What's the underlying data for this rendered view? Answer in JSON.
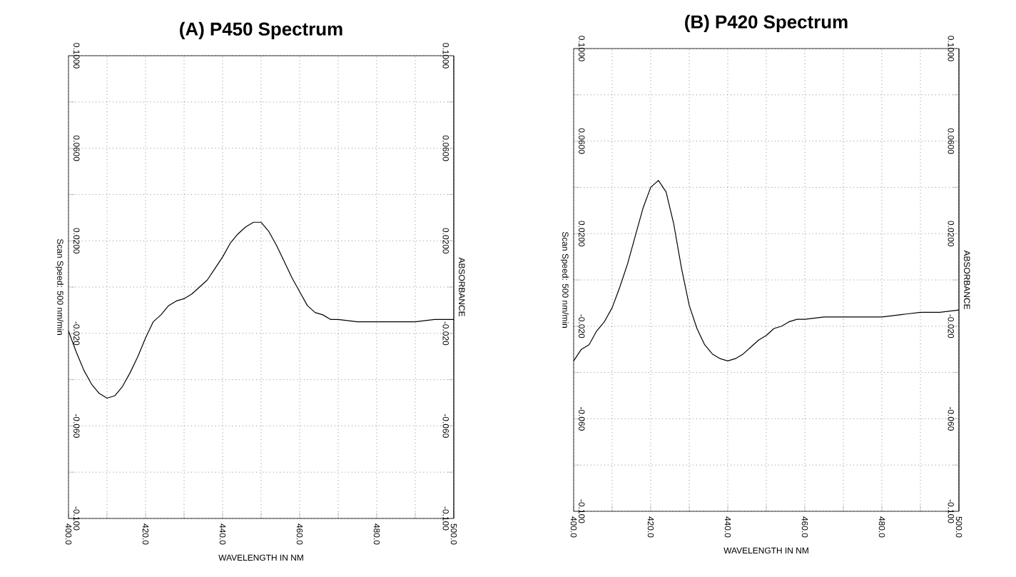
{
  "chart_data": [
    {
      "type": "line",
      "title": "(A) P450 Spectrum",
      "xlabel": "WAVELENGTH IN NM",
      "ylabel": "Scan Speed: 500 nm/min",
      "y2label": "ABSORBANCE",
      "color": "#000000",
      "grid": true,
      "marker": "none",
      "xlim": [
        400,
        500
      ],
      "ylim": [
        -0.1,
        0.1
      ],
      "y2lim": [
        -0.1,
        0.1
      ],
      "xticks": [
        {
          "value": 400,
          "label": "400.0"
        },
        {
          "value": 410,
          "label": null
        },
        {
          "value": 420,
          "label": "420.0"
        },
        {
          "value": 430,
          "label": null
        },
        {
          "value": 440,
          "label": "440.0"
        },
        {
          "value": 450,
          "label": null
        },
        {
          "value": 460,
          "label": "460.0"
        },
        {
          "value": 470,
          "label": null
        },
        {
          "value": 480,
          "label": "480.0"
        },
        {
          "value": 490,
          "label": null
        },
        {
          "value": 500,
          "label": "500.0"
        }
      ],
      "yticks": [
        {
          "value": -0.1,
          "label": "-0.100"
        },
        {
          "value": -0.08,
          "label": null
        },
        {
          "value": -0.06,
          "label": "-0.060"
        },
        {
          "value": -0.04,
          "label": null
        },
        {
          "value": -0.02,
          "label": "-0.020"
        },
        {
          "value": 0,
          "label": null
        },
        {
          "value": 0.02,
          "label": "0.0200"
        },
        {
          "value": 0.04,
          "label": null
        },
        {
          "value": 0.06,
          "label": "0.0600"
        },
        {
          "value": 0.08,
          "label": null
        },
        {
          "value": 0.1,
          "label": "0.1000"
        }
      ],
      "y2ticks": [
        {
          "value": -0.1,
          "label": "-0.100"
        },
        {
          "value": -0.08,
          "label": null
        },
        {
          "value": -0.06,
          "label": "-0.060"
        },
        {
          "value": -0.04,
          "label": null
        },
        {
          "value": -0.02,
          "label": "-0.020"
        },
        {
          "value": 0,
          "label": null
        },
        {
          "value": 0.02,
          "label": "0.0200"
        },
        {
          "value": 0.04,
          "label": null
        },
        {
          "value": 0.06,
          "label": "0.0600"
        },
        {
          "value": 0.08,
          "label": null
        },
        {
          "value": 0.1,
          "label": "0.1000"
        }
      ],
      "x": [
        400,
        402,
        404,
        406,
        408,
        410,
        412,
        414,
        416,
        418,
        420,
        422,
        424,
        426,
        428,
        430,
        432,
        434,
        436,
        438,
        440,
        442,
        444,
        446,
        448,
        450,
        452,
        454,
        456,
        458,
        460,
        462,
        464,
        466,
        468,
        470,
        475,
        480,
        485,
        490,
        495,
        500
      ],
      "values": [
        -0.019,
        -0.028,
        -0.036,
        -0.042,
        -0.046,
        -0.048,
        -0.047,
        -0.043,
        -0.037,
        -0.03,
        -0.022,
        -0.015,
        -0.012,
        -0.008,
        -0.006,
        -0.005,
        -0.003,
        0.0,
        0.003,
        0.008,
        0.013,
        0.019,
        0.023,
        0.026,
        0.028,
        0.028,
        0.024,
        0.018,
        0.011,
        0.004,
        -0.002,
        -0.008,
        -0.011,
        -0.012,
        -0.014,
        -0.014,
        -0.015,
        -0.015,
        -0.015,
        -0.015,
        -0.014,
        -0.014
      ]
    },
    {
      "type": "line",
      "title": "(B) P420 Spectrum",
      "xlabel": "WAVELENGTH IN NM",
      "ylabel": "Scan Speed: 500 nm/min",
      "y2label": "ABSORBANCE",
      "color": "#000000",
      "grid": true,
      "marker": "none",
      "xlim": [
        400,
        500
      ],
      "ylim": [
        -0.1,
        0.1
      ],
      "y2lim": [
        -0.1,
        0.1
      ],
      "xticks": [
        {
          "value": 400,
          "label": "400.0"
        },
        {
          "value": 410,
          "label": null
        },
        {
          "value": 420,
          "label": "420.0"
        },
        {
          "value": 430,
          "label": null
        },
        {
          "value": 440,
          "label": "440.0"
        },
        {
          "value": 450,
          "label": null
        },
        {
          "value": 460,
          "label": "460.0"
        },
        {
          "value": 470,
          "label": null
        },
        {
          "value": 480,
          "label": "480.0"
        },
        {
          "value": 490,
          "label": null
        },
        {
          "value": 500,
          "label": "500.0"
        }
      ],
      "yticks": [
        {
          "value": -0.1,
          "label": "-0.100"
        },
        {
          "value": -0.08,
          "label": null
        },
        {
          "value": -0.06,
          "label": "-0.060"
        },
        {
          "value": -0.04,
          "label": null
        },
        {
          "value": -0.02,
          "label": "-0.020"
        },
        {
          "value": 0,
          "label": null
        },
        {
          "value": 0.02,
          "label": "0.0200"
        },
        {
          "value": 0.04,
          "label": null
        },
        {
          "value": 0.06,
          "label": "0.0600"
        },
        {
          "value": 0.08,
          "label": null
        },
        {
          "value": 0.1,
          "label": "0.1000"
        }
      ],
      "y2ticks": [
        {
          "value": -0.1,
          "label": "-0.100"
        },
        {
          "value": -0.08,
          "label": null
        },
        {
          "value": -0.06,
          "label": "-0.060"
        },
        {
          "value": -0.04,
          "label": null
        },
        {
          "value": -0.02,
          "label": "-0.020"
        },
        {
          "value": 0,
          "label": null
        },
        {
          "value": 0.02,
          "label": "0.0200"
        },
        {
          "value": 0.04,
          "label": null
        },
        {
          "value": 0.06,
          "label": "0.0600"
        },
        {
          "value": 0.08,
          "label": null
        },
        {
          "value": 0.1,
          "label": "0.1000"
        }
      ],
      "x": [
        400,
        402,
        404,
        406,
        408,
        410,
        412,
        414,
        416,
        418,
        420,
        422,
        424,
        426,
        428,
        430,
        432,
        434,
        436,
        438,
        440,
        442,
        444,
        446,
        448,
        450,
        452,
        454,
        456,
        458,
        460,
        465,
        470,
        475,
        480,
        485,
        490,
        495,
        500
      ],
      "values": [
        -0.035,
        -0.03,
        -0.028,
        -0.022,
        -0.018,
        -0.012,
        -0.003,
        0.007,
        0.019,
        0.031,
        0.04,
        0.043,
        0.038,
        0.024,
        0.005,
        -0.011,
        -0.021,
        -0.028,
        -0.032,
        -0.034,
        -0.035,
        -0.034,
        -0.032,
        -0.029,
        -0.026,
        -0.024,
        -0.021,
        -0.02,
        -0.018,
        -0.017,
        -0.017,
        -0.016,
        -0.016,
        -0.016,
        -0.016,
        -0.015,
        -0.014,
        -0.014,
        -0.013
      ]
    }
  ]
}
